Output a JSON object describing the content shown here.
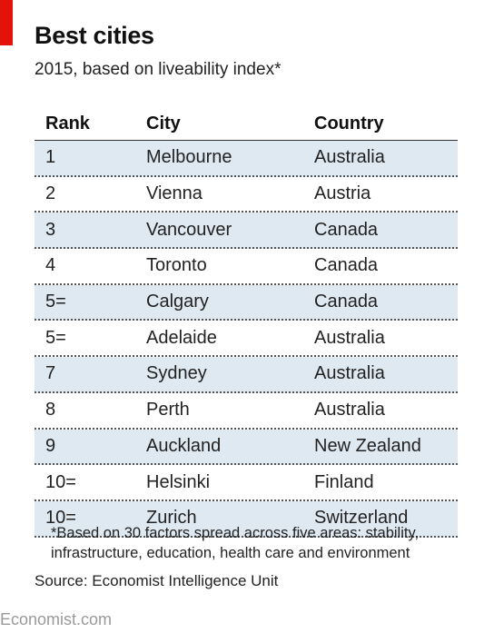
{
  "title": "Best cities",
  "subtitle": "2015, based on liveability index*",
  "chart_data": {
    "type": "table",
    "columns": [
      "Rank",
      "City",
      "Country"
    ],
    "rows": [
      {
        "rank": "1",
        "city": "Melbourne",
        "country": "Australia"
      },
      {
        "rank": "2",
        "city": "Vienna",
        "country": "Austria"
      },
      {
        "rank": "3",
        "city": "Vancouver",
        "country": "Canada"
      },
      {
        "rank": "4",
        "city": "Toronto",
        "country": "Canada"
      },
      {
        "rank": "5=",
        "city": "Calgary",
        "country": "Canada"
      },
      {
        "rank": "5=",
        "city": "Adelaide",
        "country": "Australia"
      },
      {
        "rank": "7",
        "city": "Sydney",
        "country": "Australia"
      },
      {
        "rank": "8",
        "city": "Perth",
        "country": "Australia"
      },
      {
        "rank": "9",
        "city": "Auckland",
        "country": "New Zealand"
      },
      {
        "rank": "10=",
        "city": "Helsinki",
        "country": "Finland"
      },
      {
        "rank": "10=",
        "city": "Zurich",
        "country": "Switzerland"
      }
    ]
  },
  "footnote_line1": "*Based on 30 factors spread across five areas: stability,",
  "footnote_line2": "infrastructure, education, health care and environment",
  "source": "Source: Economist Intelligence Unit",
  "watermark": "Economist.com",
  "colors": {
    "accent": "#e3120b",
    "row_shade": "#dfe9f1"
  }
}
